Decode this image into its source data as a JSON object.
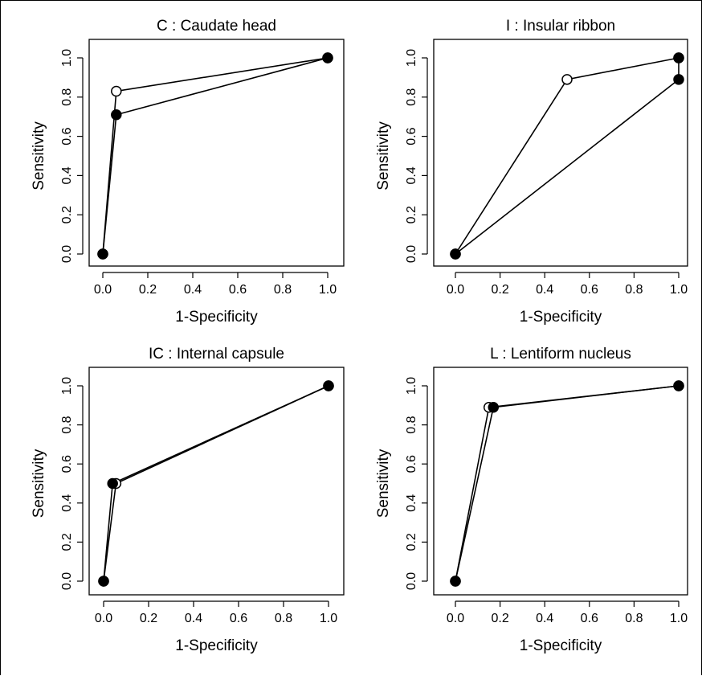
{
  "chart_data": [
    {
      "type": "line",
      "title": "C : Caudate head",
      "xlabel": "1-Specificity",
      "ylabel": "Sensitivity",
      "xlim": [
        0,
        1
      ],
      "ylim": [
        0,
        1
      ],
      "xticks": [
        "0.0",
        "0.2",
        "0.4",
        "0.6",
        "0.8",
        "1.0"
      ],
      "yticks": [
        "0.0",
        "0.2",
        "0.4",
        "0.6",
        "0.8",
        "1.0"
      ],
      "series": [
        {
          "marker": "open-circle",
          "points": [
            [
              0,
              0
            ],
            [
              0.06,
              0.83
            ],
            [
              1,
              1
            ]
          ]
        },
        {
          "marker": "filled-circle",
          "points": [
            [
              0,
              0
            ],
            [
              0.06,
              0.71
            ],
            [
              1,
              1
            ]
          ]
        }
      ]
    },
    {
      "type": "line",
      "title": "I :  Insular ribbon",
      "xlabel": "1-Specificity",
      "ylabel": "Sensitivity",
      "xlim": [
        0,
        1
      ],
      "ylim": [
        0,
        1
      ],
      "xticks": [
        "0.0",
        "0.2",
        "0.4",
        "0.6",
        "0.8",
        "1.0"
      ],
      "yticks": [
        "0.0",
        "0.2",
        "0.4",
        "0.6",
        "0.8",
        "1.0"
      ],
      "series": [
        {
          "marker": "open-circle",
          "points": [
            [
              0,
              0
            ],
            [
              0.5,
              0.89
            ],
            [
              1,
              1
            ]
          ]
        },
        {
          "marker": "filled-circle",
          "points": [
            [
              0,
              0
            ],
            [
              1,
              0.89
            ],
            [
              1,
              1
            ]
          ]
        }
      ]
    },
    {
      "type": "line",
      "title": "IC : Internal capsule",
      "xlabel": "1-Specificity",
      "ylabel": "Sensitivity",
      "xlim": [
        0,
        1
      ],
      "ylim": [
        0,
        1
      ],
      "xticks": [
        "0.0",
        "0.2",
        "0.4",
        "0.6",
        "0.8",
        "1.0"
      ],
      "yticks": [
        "0.0",
        "0.2",
        "0.4",
        "0.6",
        "0.8",
        "1.0"
      ],
      "series": [
        {
          "marker": "open-circle",
          "points": [
            [
              0,
              0
            ],
            [
              0.055,
              0.5
            ],
            [
              1,
              1
            ]
          ]
        },
        {
          "marker": "filled-circle",
          "points": [
            [
              0,
              0
            ],
            [
              0.04,
              0.5
            ],
            [
              1,
              1
            ]
          ]
        }
      ]
    },
    {
      "type": "line",
      "title": "L : Lentiform nucleus",
      "xlabel": "1-Specificity",
      "ylabel": "Sensitivity",
      "xlim": [
        0,
        1
      ],
      "ylim": [
        0,
        1
      ],
      "xticks": [
        "0.0",
        "0.2",
        "0.4",
        "0.6",
        "0.8",
        "1.0"
      ],
      "yticks": [
        "0.0",
        "0.2",
        "0.4",
        "0.6",
        "0.8",
        "1.0"
      ],
      "series": [
        {
          "marker": "open-circle",
          "points": [
            [
              0,
              0
            ],
            [
              0.15,
              0.89
            ],
            [
              1,
              1
            ]
          ]
        },
        {
          "marker": "filled-circle",
          "points": [
            [
              0,
              0
            ],
            [
              0.17,
              0.89
            ],
            [
              1,
              1
            ]
          ]
        }
      ]
    }
  ]
}
